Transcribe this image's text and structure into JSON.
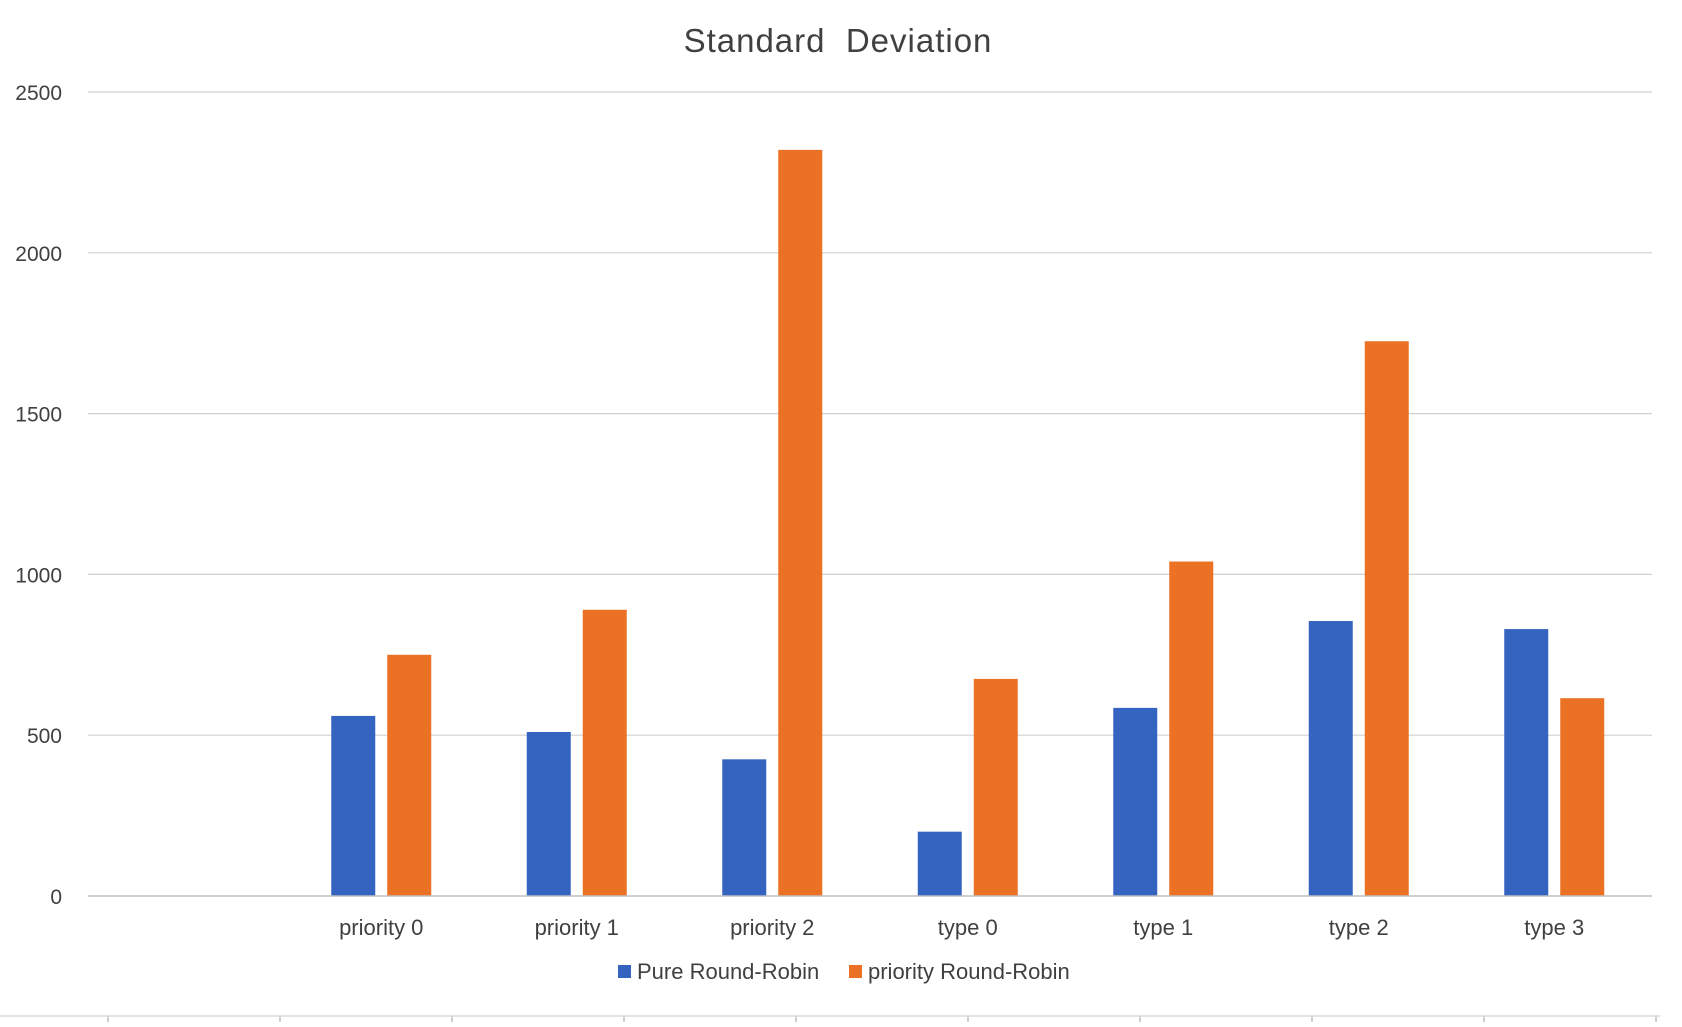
{
  "chart_data": {
    "type": "bar",
    "title": "Standard  Deviation",
    "xlabel": "",
    "ylabel": "",
    "ylim": [
      0,
      2500
    ],
    "yticks": [
      0,
      500,
      1000,
      1500,
      2000,
      2500
    ],
    "ytick_labels": [
      "0",
      "500",
      "1000",
      "1500",
      "2000",
      "2500"
    ],
    "categories": [
      "",
      "priority 0",
      "priority 1",
      "priority 2",
      "type 0",
      "type 1",
      "type 2",
      "type 3"
    ],
    "series": [
      {
        "name": "Pure Round-Robin",
        "color": "#3563c0",
        "values": [
          null,
          560,
          510,
          425,
          200,
          585,
          855,
          830
        ]
      },
      {
        "name": "priority Round-Robin",
        "color": "#eb7124",
        "values": [
          null,
          750,
          890,
          2320,
          675,
          1040,
          1725,
          615
        ]
      }
    ],
    "grid": true,
    "legend_position": "bottom"
  }
}
